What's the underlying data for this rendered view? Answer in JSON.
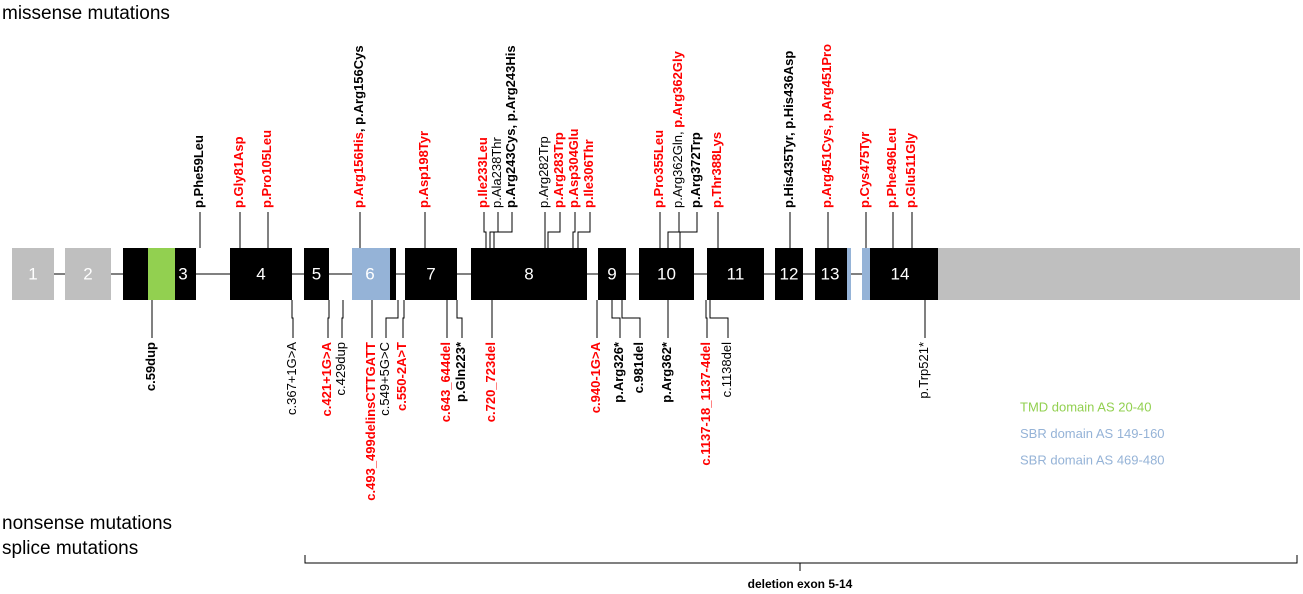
{
  "headings": {
    "missense": "missense mutations",
    "nonsense": "nonsense mutations",
    "splice": "splice mutations"
  },
  "exons": [
    "1",
    "2",
    "3",
    "4",
    "5",
    "6",
    "7",
    "8",
    "9",
    "10",
    "11",
    "12",
    "13",
    "14"
  ],
  "missense": [
    {
      "parts": [
        {
          "text": "p.Phe59Leu",
          "color": "#000000",
          "bold": true
        }
      ]
    },
    {
      "parts": [
        {
          "text": "p.Gly81Asp",
          "color": "#ff0000",
          "bold": true
        }
      ]
    },
    {
      "parts": [
        {
          "text": "p.Pro105Leu",
          "color": "#ff0000",
          "bold": true
        }
      ]
    },
    {
      "parts": [
        {
          "text": "p.Arg156His",
          "color": "#ff0000",
          "bold": true
        },
        {
          "text": ", p.Arg156Cys",
          "color": "#000000",
          "bold": true
        }
      ]
    },
    {
      "parts": [
        {
          "text": "p.Asp198Tyr",
          "color": "#ff0000",
          "bold": true
        }
      ]
    },
    {
      "parts": [
        {
          "text": "p.Ile233Leu",
          "color": "#ff0000",
          "bold": true
        }
      ]
    },
    {
      "parts": [
        {
          "text": "p.Ala238Thr",
          "color": "#000000",
          "bold": false
        }
      ]
    },
    {
      "parts": [
        {
          "text": "p.Arg243Cys, p.Arg243His",
          "color": "#000000",
          "bold": true
        }
      ]
    },
    {
      "parts": [
        {
          "text": "p.Arg282Trp",
          "color": "#000000",
          "bold": false
        }
      ]
    },
    {
      "parts": [
        {
          "text": "p.Arg283Trp",
          "color": "#ff0000",
          "bold": true
        }
      ]
    },
    {
      "parts": [
        {
          "text": "p.Asp304Glu",
          "color": "#ff0000",
          "bold": true
        }
      ]
    },
    {
      "parts": [
        {
          "text": "p.Ile306Thr",
          "color": "#ff0000",
          "bold": true
        }
      ]
    },
    {
      "parts": [
        {
          "text": "p.Pro355Leu",
          "color": "#ff0000",
          "bold": true
        }
      ]
    },
    {
      "parts": [
        {
          "text": "p.Arg362Gln, ",
          "color": "#000000",
          "bold": false
        },
        {
          "text": "p.Arg362Gly",
          "color": "#ff0000",
          "bold": true
        }
      ]
    },
    {
      "parts": [
        {
          "text": "p.Arg372Trp",
          "color": "#000000",
          "bold": true
        }
      ]
    },
    {
      "parts": [
        {
          "text": "p.Thr388Lys",
          "color": "#ff0000",
          "bold": true
        }
      ]
    },
    {
      "parts": [
        {
          "text": "p.His435Tyr, p.His436Asp",
          "color": "#000000",
          "bold": true
        }
      ]
    },
    {
      "parts": [
        {
          "text": "p.Arg451Cys, p.Arg451Pro",
          "color": "#ff0000",
          "bold": true
        }
      ]
    },
    {
      "parts": [
        {
          "text": "p.Cys475Tyr",
          "color": "#ff0000",
          "bold": true
        }
      ]
    },
    {
      "parts": [
        {
          "text": "p.Phe496Leu",
          "color": "#ff0000",
          "bold": true
        }
      ]
    },
    {
      "parts": [
        {
          "text": "p.Glu511Gly",
          "color": "#ff0000",
          "bold": true
        }
      ]
    }
  ],
  "nonsense_splice": [
    {
      "parts": [
        {
          "text": "c.59dup",
          "color": "#000000",
          "bold": true
        }
      ]
    },
    {
      "parts": [
        {
          "text": "c.367+1G>A",
          "color": "#000000",
          "bold": false
        }
      ]
    },
    {
      "parts": [
        {
          "text": "c.421+1G>A",
          "color": "#ff0000",
          "bold": true
        }
      ]
    },
    {
      "parts": [
        {
          "text": "c.429dup",
          "color": "#000000",
          "bold": false
        }
      ]
    },
    {
      "parts": [
        {
          "text": "c.493_499delinsCTTGATT",
          "color": "#ff0000",
          "bold": true
        }
      ]
    },
    {
      "parts": [
        {
          "text": "c.549+5G>C",
          "color": "#000000",
          "bold": false
        }
      ]
    },
    {
      "parts": [
        {
          "text": "c.550-2A>T",
          "color": "#ff0000",
          "bold": true
        }
      ]
    },
    {
      "parts": [
        {
          "text": "c.643_644del",
          "color": "#ff0000",
          "bold": true
        }
      ]
    },
    {
      "parts": [
        {
          "text": "p.Gln223*",
          "color": "#000000",
          "bold": true
        }
      ]
    },
    {
      "parts": [
        {
          "text": "c.720_723del",
          "color": "#ff0000",
          "bold": true
        }
      ]
    },
    {
      "parts": [
        {
          "text": "c.940-1G>A",
          "color": "#ff0000",
          "bold": true
        }
      ]
    },
    {
      "parts": [
        {
          "text": "p.Arg326*",
          "color": "#000000",
          "bold": true
        }
      ]
    },
    {
      "parts": [
        {
          "text": "c.981del",
          "color": "#000000",
          "bold": true
        }
      ]
    },
    {
      "parts": [
        {
          "text": "p.Arg362*",
          "color": "#000000",
          "bold": true
        }
      ]
    },
    {
      "parts": [
        {
          "text": "c.1137-18_1137-4del",
          "color": "#ff0000",
          "bold": true
        }
      ]
    },
    {
      "parts": [
        {
          "text": "c.1138del",
          "color": "#000000",
          "bold": false
        }
      ]
    },
    {
      "parts": [
        {
          "text": "p.Trp521*",
          "color": "#000000",
          "bold": false
        }
      ]
    }
  ],
  "legend": [
    {
      "text": "TMD domain AS 20-40",
      "color": "#92d050"
    },
    {
      "text": "SBR domain AS 149-160",
      "color": "#95b3d7"
    },
    {
      "text": "SBR domain AS 469-480",
      "color": "#95b3d7"
    }
  ],
  "deletion": "deletion exon 5-14"
}
